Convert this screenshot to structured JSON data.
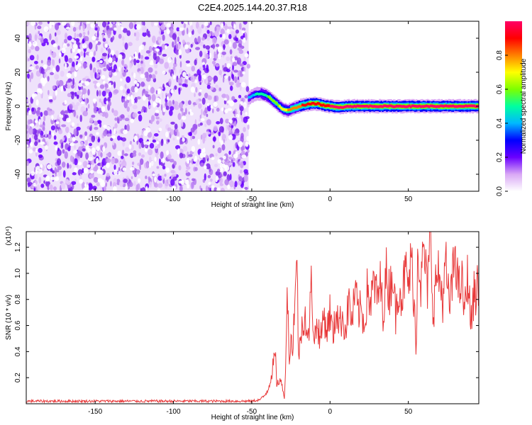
{
  "title": "C2E4.2025.144.20.37.R18",
  "colors": {
    "snr_line": "#e8393a",
    "axis": "#000000",
    "colormap": [
      "#ffffff",
      "#d9a8f5",
      "#6a00ff",
      "#0000ff",
      "#00b8ff",
      "#00ffa0",
      "#7dff00",
      "#ffff00",
      "#ff8000",
      "#ff0000",
      "#ff0066"
    ]
  },
  "chart_data": [
    {
      "id": "spectrogram",
      "type": "heatmap",
      "title": "C2E4.2025.144.20.37.R18",
      "xlabel": "Height of straight line (km)",
      "ylabel": "Frequency (Hz)",
      "xlim": [
        -194,
        95
      ],
      "ylim": [
        -50,
        50
      ],
      "x_ticks": [
        -150,
        -100,
        -50,
        0,
        50
      ],
      "x_tick_labels": [
        "-150",
        "-100",
        "-50",
        "0",
        "50"
      ],
      "y_ticks": [
        -40,
        -20,
        0,
        20,
        40
      ],
      "y_tick_labels": [
        "-40",
        "-20",
        "0",
        "20",
        "40"
      ],
      "noise_region_x": [
        -194,
        -52
      ],
      "ridge": {
        "x": [
          -52,
          -48,
          -44,
          -40,
          -36,
          -33,
          -30,
          -27,
          -24,
          -21,
          -18,
          -15,
          -12,
          -8,
          -4,
          0,
          4,
          8,
          12,
          20,
          30,
          40,
          50,
          60,
          70,
          80,
          95
        ],
        "y": [
          5,
          7,
          7.5,
          6,
          3,
          0.5,
          -2,
          -2.5,
          -1.5,
          -0.5,
          0.5,
          1,
          1.5,
          1.5,
          0.5,
          0,
          -0.5,
          -0.5,
          0,
          0,
          0,
          0,
          0,
          0,
          0,
          0,
          0
        ],
        "peak_amplitude": [
          0.35,
          0.45,
          0.5,
          0.55,
          0.6,
          0.65,
          0.7,
          0.75,
          0.8,
          0.82,
          0.85,
          0.88,
          0.9,
          0.9,
          0.92,
          0.95,
          0.95,
          0.95,
          0.95,
          0.95,
          0.95,
          0.95,
          0.95,
          0.95,
          0.95,
          0.95,
          0.95
        ]
      },
      "colorbar": {
        "label": "Normalized spectral amplitude",
        "range": [
          0,
          1
        ],
        "ticks": [
          0.0,
          0.2,
          0.4,
          0.6,
          0.8
        ],
        "tick_labels": [
          "0.0",
          "0.2",
          "0.4",
          "0.6",
          "0.8"
        ]
      }
    },
    {
      "id": "snr",
      "type": "line",
      "xlabel": "Height of straight line (km)",
      "ylabel": "SNR (10 * v/v)",
      "y_multiplier": "(x10⁴)",
      "xlim": [
        -194,
        95
      ],
      "ylim": [
        0,
        1.32
      ],
      "x_ticks": [
        -150,
        -100,
        -50,
        0,
        50
      ],
      "x_tick_labels": [
        "-150",
        "-100",
        "-50",
        "0",
        "50"
      ],
      "y_ticks": [
        0.2,
        0.4,
        0.6,
        0.8,
        1.0,
        1.2
      ],
      "y_tick_labels": [
        "0.2",
        "0.4",
        "0.6",
        "0.8",
        "1.0",
        "1.2"
      ],
      "series": [
        {
          "x": [
            -194,
            -150,
            -100,
            -60,
            -50,
            -45,
            -42,
            -40,
            -38,
            -36,
            -35,
            -34,
            -32,
            -30,
            -29,
            -28,
            -27,
            -26,
            -25,
            -24,
            -22,
            -21,
            -20,
            -18,
            -16,
            -14,
            -12,
            -10,
            -8,
            -6,
            -4,
            -2,
            0,
            2,
            4,
            6,
            8,
            10,
            12,
            14,
            16,
            18,
            20,
            22,
            24,
            26,
            28,
            30,
            32,
            34,
            36,
            38,
            40,
            42,
            44,
            46,
            48,
            50,
            52,
            54,
            55,
            56,
            58,
            60,
            62,
            64,
            66,
            68,
            70,
            72,
            74,
            76,
            78,
            80,
            82,
            84,
            86,
            88,
            90,
            92,
            95
          ],
          "y": [
            0.02,
            0.02,
            0.02,
            0.02,
            0.02,
            0.03,
            0.06,
            0.1,
            0.18,
            0.32,
            0.38,
            0.15,
            0.18,
            0.12,
            0.02,
            0.55,
            0.9,
            0.3,
            0.5,
            0.4,
            0.95,
            1.0,
            0.35,
            0.6,
            0.7,
            0.45,
            0.9,
            0.5,
            0.62,
            0.48,
            0.7,
            0.55,
            0.72,
            0.5,
            0.75,
            0.6,
            0.68,
            0.55,
            0.8,
            0.62,
            0.85,
            0.7,
            0.72,
            0.6,
            0.9,
            0.75,
            0.95,
            0.8,
            0.92,
            0.7,
            1.0,
            0.85,
            1.05,
            0.65,
            0.95,
            0.8,
            1.02,
            0.9,
            1.1,
            0.75,
            0.32,
            1.3,
            0.9,
            1.2,
            0.85,
            1.25,
            0.7,
            1.0,
            0.95,
            0.8,
            1.05,
            0.75,
            0.9,
            1.22,
            0.85,
            0.95,
            0.7,
            1.0,
            0.6,
            0.85,
            0.9
          ]
        }
      ]
    }
  ]
}
